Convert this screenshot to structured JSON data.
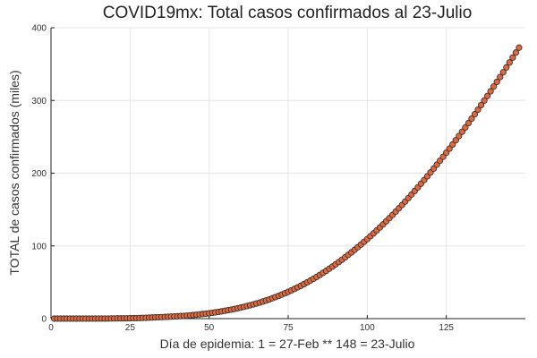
{
  "chart_data": {
    "type": "scatter",
    "title": "COVID19mx: Total casos confirmados al 23-Julio",
    "xlabel": "Día de epidemia: 1 = 27-Feb ** 148 = 23-Julio",
    "ylabel": "TOTAL de casos confirmados (miles)",
    "xlim": [
      0,
      150
    ],
    "ylim": [
      0,
      400
    ],
    "xticks": [
      0,
      25,
      50,
      75,
      100,
      125
    ],
    "yticks": [
      0,
      100,
      200,
      300,
      400
    ],
    "grid": true,
    "legend": "none",
    "colors": {
      "marker_fill": "#e0683f",
      "marker_stroke": "#2a2a2a"
    },
    "series": [
      {
        "x": [
          1,
          2,
          3,
          4,
          5,
          6,
          7,
          8,
          9,
          10,
          11,
          12,
          13,
          14,
          15,
          16,
          17,
          18,
          19,
          20,
          21,
          22,
          23,
          24,
          25,
          26,
          27,
          28,
          29,
          30,
          31,
          32,
          33,
          34,
          35,
          36,
          37,
          38,
          39,
          40,
          41,
          42,
          43,
          44,
          45,
          46,
          47,
          48,
          49,
          50,
          51,
          52,
          53,
          54,
          55,
          56,
          57,
          58,
          59,
          60,
          61,
          62,
          63,
          64,
          65,
          66,
          67,
          68,
          69,
          70,
          71,
          72,
          73,
          74,
          75,
          76,
          77,
          78,
          79,
          80,
          81,
          82,
          83,
          84,
          85,
          86,
          87,
          88,
          89,
          90,
          91,
          92,
          93,
          94,
          95,
          96,
          97,
          98,
          99,
          100,
          101,
          102,
          103,
          104,
          105,
          106,
          107,
          108,
          109,
          110,
          111,
          112,
          113,
          114,
          115,
          116,
          117,
          118,
          119,
          120,
          121,
          122,
          123,
          124,
          125,
          126,
          127,
          128,
          129,
          130,
          131,
          132,
          133,
          134,
          135,
          136,
          137,
          138,
          139,
          140,
          141,
          142,
          143,
          144,
          145,
          146,
          147,
          148
        ],
        "y": [
          0.0,
          0.0,
          0.0,
          0.0,
          0.0,
          0.0,
          0.0,
          0.0,
          0.0,
          0.0,
          0.0,
          0.0,
          0.0,
          0.0,
          0.1,
          0.1,
          0.1,
          0.1,
          0.2,
          0.2,
          0.3,
          0.3,
          0.4,
          0.4,
          0.5,
          0.6,
          0.7,
          0.8,
          1.0,
          1.1,
          1.3,
          1.5,
          1.7,
          1.9,
          2.1,
          2.3,
          2.5,
          2.8,
          3.0,
          3.2,
          3.5,
          3.8,
          4.1,
          4.5,
          4.9,
          5.3,
          5.8,
          6.3,
          6.8,
          7.3,
          7.9,
          8.6,
          9.3,
          10.0,
          10.8,
          11.6,
          12.4,
          13.3,
          14.2,
          15.2,
          16.2,
          17.3,
          18.4,
          19.6,
          20.8,
          22.1,
          23.5,
          24.9,
          26.4,
          28.0,
          29.6,
          31.3,
          33.1,
          34.9,
          36.8,
          38.8,
          40.9,
          43.0,
          45.2,
          47.5,
          49.9,
          52.3,
          54.8,
          57.4,
          60.1,
          62.9,
          65.7,
          68.6,
          71.6,
          74.7,
          77.8,
          81.0,
          84.3,
          87.7,
          91.1,
          94.6,
          98.2,
          101.9,
          105.6,
          109.4,
          113.3,
          117.3,
          121.3,
          125.4,
          129.6,
          133.9,
          138.2,
          142.6,
          147.1,
          151.7,
          156.3,
          161.0,
          165.8,
          170.6,
          175.5,
          180.5,
          185.5,
          190.6,
          195.8,
          201.0,
          206.3,
          211.7,
          217.1,
          222.6,
          228.2,
          233.8,
          239.5,
          245.3,
          251.1,
          257.0,
          262.9,
          268.9,
          275.0,
          281.1,
          287.3,
          293.6,
          299.9,
          306.2,
          312.6,
          319.1,
          325.6,
          332.2,
          338.8,
          345.5,
          352.2,
          359.0,
          365.8,
          372.6
        ]
      }
    ]
  }
}
